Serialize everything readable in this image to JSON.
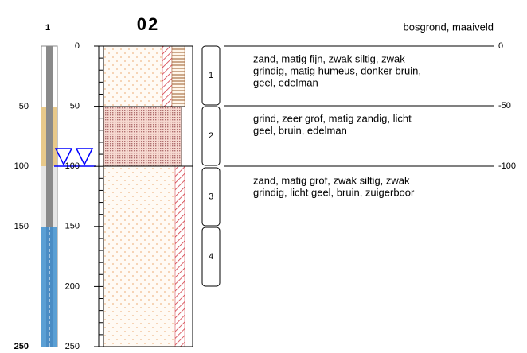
{
  "well": {
    "id": "1",
    "depth_labels": [
      "50",
      "100",
      "150",
      "250"
    ]
  },
  "boring": {
    "id": "02",
    "surface": "bosgrond, maaiveld",
    "depth_ticks": [
      "0",
      "50",
      "100",
      "150",
      "200",
      "250"
    ]
  },
  "samples": [
    "1",
    "2",
    "3",
    "4"
  ],
  "levels": [
    "0",
    "-50",
    "-100"
  ],
  "layers": [
    {
      "description": [
        "zand, matig fijn, zwak siltig, zwak",
        "grindig, matig humeus, donker bruin,",
        "geel, edelman"
      ]
    },
    {
      "description": [
        "grind, zeer grof, matig zandig, licht",
        "geel, bruin, edelman"
      ]
    },
    {
      "description": [
        "zand, matig grof, zwak siltig, zwak",
        "grindig, licht geel, bruin, zuigerboor"
      ]
    }
  ]
}
